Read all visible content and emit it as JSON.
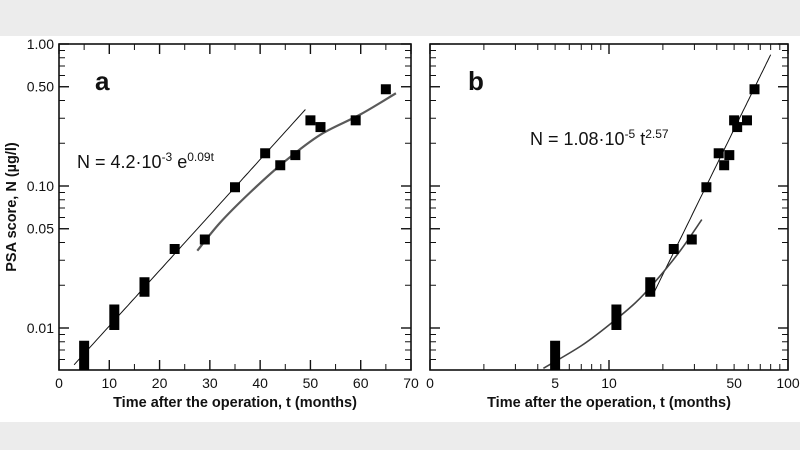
{
  "chart_data": [
    {
      "type": "scatter",
      "panel_label": "a",
      "xlabel": "Time after the operation, t (months)",
      "ylabel": "PSA score, N (µg/l)",
      "x_scale": "linear",
      "y_scale": "log",
      "xlim": [
        0,
        70
      ],
      "ylim": [
        0.005,
        1.0
      ],
      "x_ticks": [
        "0",
        "10",
        "20",
        "30",
        "40",
        "50",
        "60",
        "70"
      ],
      "y_ticks": [
        "0.01",
        "0.05",
        "0.10",
        "0.50",
        "1.00"
      ],
      "equation": {
        "lhs": "N = 4.2·10",
        "exp1": "-3",
        "mid": " e",
        "exp2": "0.09t"
      },
      "points": [
        {
          "t": 5,
          "N_min": 0.005,
          "N_max": 0.0075
        },
        {
          "t": 11,
          "N_min": 0.0105,
          "N_max": 0.0135
        },
        {
          "t": 17,
          "N_min": 0.018,
          "N_max": 0.021
        },
        {
          "t": 23,
          "N_min": 0.036,
          "N_max": 0.036
        },
        {
          "t": 29,
          "N_min": 0.042,
          "N_max": 0.042
        },
        {
          "t": 35,
          "N_min": 0.098,
          "N_max": 0.098
        },
        {
          "t": 41,
          "N_min": 0.17,
          "N_max": 0.17
        },
        {
          "t": 44,
          "N_min": 0.14,
          "N_max": 0.14
        },
        {
          "t": 47,
          "N_min": 0.165,
          "N_max": 0.165
        },
        {
          "t": 50,
          "N_min": 0.29,
          "N_max": 0.29
        },
        {
          "t": 52,
          "N_min": 0.26,
          "N_max": 0.26
        },
        {
          "t": 59,
          "N_min": 0.29,
          "N_max": 0.29
        },
        {
          "t": 65,
          "N_min": 0.48,
          "N_max": 0.48
        }
      ],
      "fit_line": {
        "type": "exponential",
        "a": 0.0042,
        "b": 0.09,
        "t_range": [
          3,
          49
        ],
        "color": "#111111"
      },
      "second_curve": {
        "color": "#5a5a5a",
        "points": [
          [
            27.5,
            0.035
          ],
          [
            32,
            0.055
          ],
          [
            38,
            0.09
          ],
          [
            45,
            0.15
          ],
          [
            52,
            0.23
          ],
          [
            60,
            0.32
          ],
          [
            67,
            0.45
          ]
        ]
      }
    },
    {
      "type": "scatter",
      "panel_label": "b",
      "xlabel": "Time after the operation, t (months)",
      "x_scale": "log",
      "y_scale": "log",
      "xlim": [
        1,
        100
      ],
      "ylim": [
        0.005,
        1.0
      ],
      "x_ticks": [
        {
          "v": 1,
          "label": "0"
        },
        {
          "v": 5,
          "label": "5"
        },
        {
          "v": 10,
          "label": "10"
        },
        {
          "v": 50,
          "label": "50"
        },
        {
          "v": 100,
          "label": "100"
        }
      ],
      "equation": {
        "lhs": "N = 1.08·10",
        "exp1": "-5",
        "mid": " t",
        "exp2": "2.57"
      },
      "points": [
        {
          "t": 5,
          "N_min": 0.005,
          "N_max": 0.0075
        },
        {
          "t": 11,
          "N_min": 0.0105,
          "N_max": 0.0135
        },
        {
          "t": 17,
          "N_min": 0.018,
          "N_max": 0.021
        },
        {
          "t": 23,
          "N_min": 0.036,
          "N_max": 0.036
        },
        {
          "t": 29,
          "N_min": 0.042,
          "N_max": 0.042
        },
        {
          "t": 35,
          "N_min": 0.098,
          "N_max": 0.098
        },
        {
          "t": 41,
          "N_min": 0.17,
          "N_max": 0.17
        },
        {
          "t": 44,
          "N_min": 0.14,
          "N_max": 0.14
        },
        {
          "t": 47,
          "N_min": 0.165,
          "N_max": 0.165
        },
        {
          "t": 50,
          "N_min": 0.29,
          "N_max": 0.29
        },
        {
          "t": 52,
          "N_min": 0.26,
          "N_max": 0.26
        },
        {
          "t": 59,
          "N_min": 0.29,
          "N_max": 0.29
        },
        {
          "t": 65,
          "N_min": 0.48,
          "N_max": 0.48
        }
      ],
      "fit_line": {
        "type": "power",
        "a": 1.08e-05,
        "b": 2.57,
        "t_range": [
          18,
          80
        ],
        "color": "#111111"
      },
      "second_curve": {
        "color": "#444444",
        "points": [
          [
            4.3,
            0.0052
          ],
          [
            7,
            0.0075
          ],
          [
            10,
            0.0105
          ],
          [
            14,
            0.015
          ],
          [
            18,
            0.021
          ],
          [
            25,
            0.035
          ],
          [
            33,
            0.058
          ]
        ]
      }
    }
  ]
}
